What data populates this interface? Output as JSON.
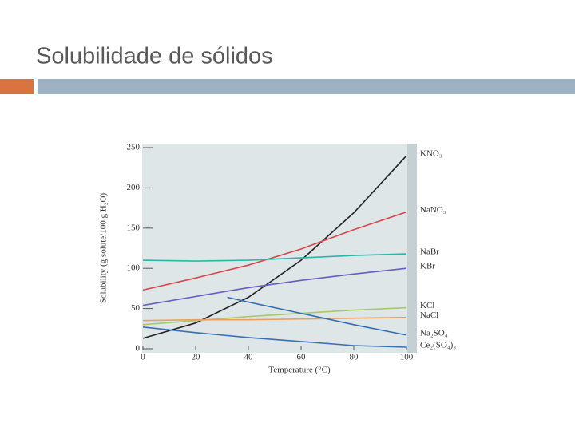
{
  "title": "Solubilidade de sólidos",
  "chart_data": {
    "type": "line",
    "xlabel": "Temperature (°C)",
    "ylabel": "Solubility (g solute/100 g H₂O)",
    "x": [
      0,
      20,
      40,
      60,
      80,
      100
    ],
    "xlim": [
      0,
      100
    ],
    "xticks": [
      0,
      20,
      40,
      60,
      80,
      100
    ],
    "ylim": [
      0,
      250
    ],
    "yticks": [
      0,
      50,
      100,
      150,
      200,
      250
    ],
    "series": [
      {
        "name": "KNO₃",
        "color": "#222222",
        "values": [
          13,
          32,
          64,
          110,
          169,
          240
        ]
      },
      {
        "name": "NaNO₃",
        "color": "#d9454a",
        "values": [
          73,
          88,
          104,
          124,
          148,
          170
        ]
      },
      {
        "name": "NaBr",
        "color": "#2bb5a8",
        "values": [
          110,
          109,
          110,
          113,
          116,
          118
        ]
      },
      {
        "name": "KBr",
        "color": "#6a5bbf",
        "values": [
          54,
          65,
          76,
          85,
          93,
          100
        ]
      },
      {
        "name": "KCl",
        "color": "#a6c96a",
        "values": [
          30,
          35,
          40,
          44,
          48,
          51
        ]
      },
      {
        "name": "NaCl",
        "color": "#e8a060",
        "values": [
          35,
          36,
          36,
          37,
          38,
          39
        ]
      },
      {
        "name": "Na₂SO₄",
        "color": "#2f6db0",
        "x": [
          32,
          40,
          60,
          80,
          100
        ],
        "values": [
          64,
          58,
          44,
          30,
          17
        ]
      },
      {
        "name": "Ce₂(SO₄)₃",
        "color": "#3a6fb5",
        "values": [
          27,
          20,
          14,
          9,
          4,
          2
        ]
      }
    ]
  }
}
